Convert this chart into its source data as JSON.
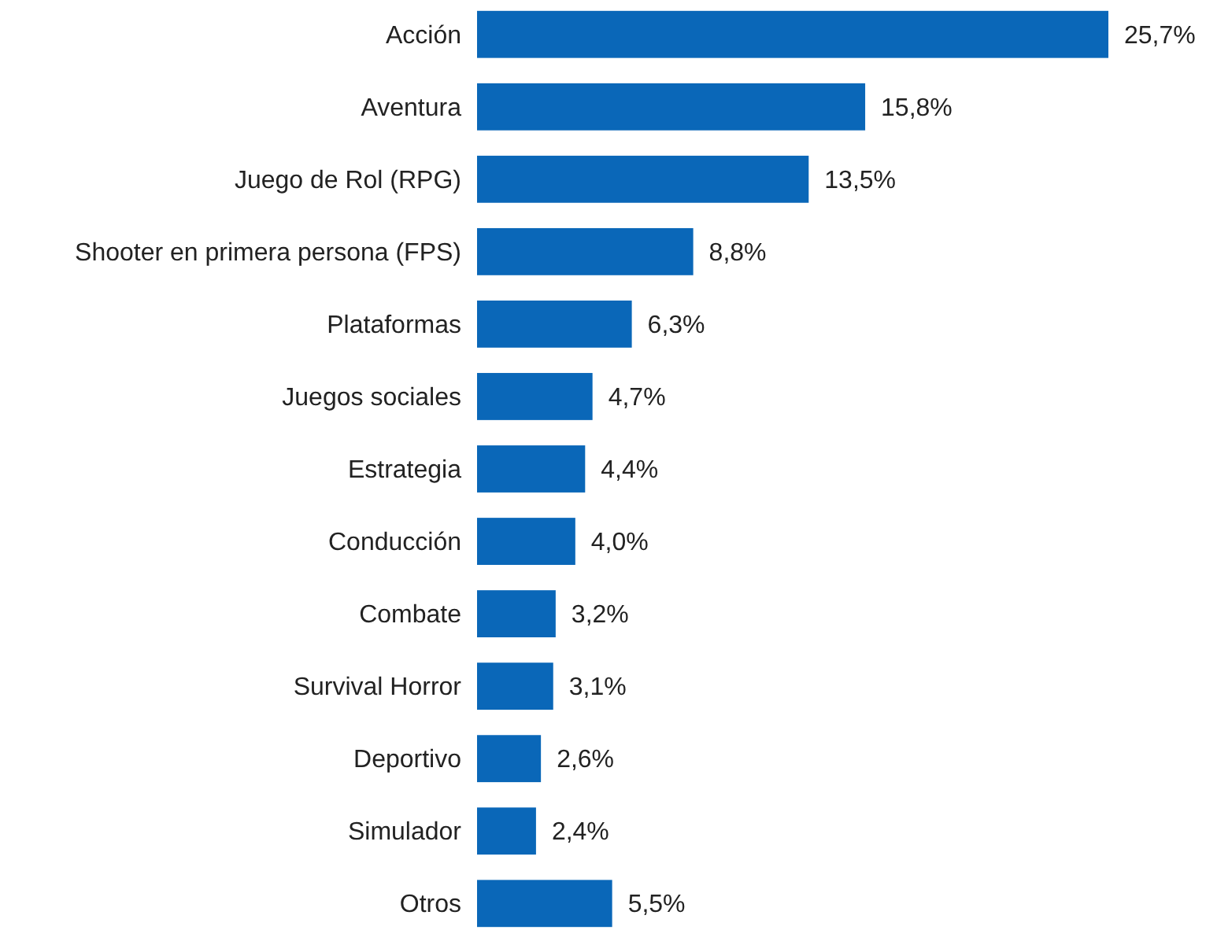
{
  "chart_data": {
    "type": "bar",
    "orientation": "horizontal",
    "categories": [
      "Acción",
      "Aventura",
      "Juego de Rol (RPG)",
      "Shooter en primera persona (FPS)",
      "Plataformas",
      "Juegos sociales",
      "Estrategia",
      "Conducción",
      "Combate",
      "Survival Horror",
      "Deportivo",
      "Simulador",
      "Otros"
    ],
    "values": [
      25.7,
      15.8,
      13.5,
      8.8,
      6.3,
      4.7,
      4.4,
      4.0,
      3.2,
      3.1,
      2.6,
      2.4,
      5.5
    ],
    "value_labels": [
      "25,7%",
      "15,8%",
      "13,5%",
      "8,8%",
      "6,3%",
      "4,7%",
      "4,4%",
      "4,0%",
      "3,2%",
      "3,1%",
      "2,6%",
      "2,4%",
      "5,5%"
    ],
    "color": "#0a67b8"
  }
}
